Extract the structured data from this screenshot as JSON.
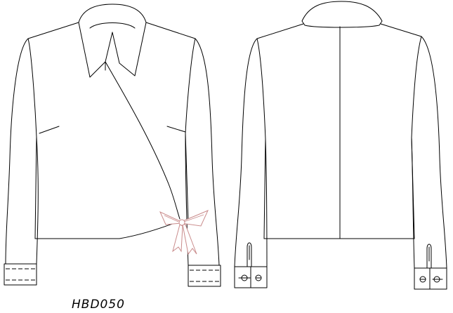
{
  "style_code": "HBD050",
  "colors": {
    "outline": "#000000",
    "bow": "#c98b8b",
    "background": "#ffffff"
  },
  "views": [
    "front",
    "back"
  ]
}
